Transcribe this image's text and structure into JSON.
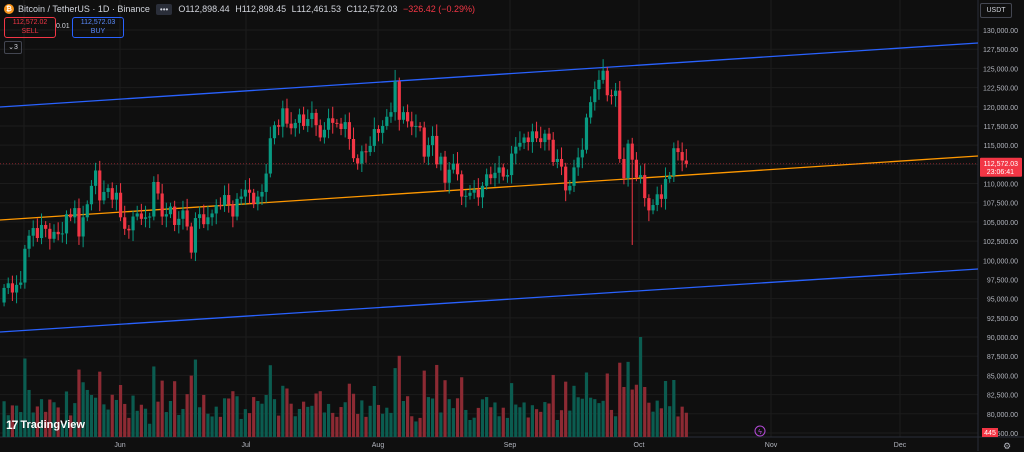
{
  "header": {
    "symbol_title": "Bitcoin / TetherUS · 1D · Binance",
    "more_label": "•••",
    "ohlc_open": "O112,898.44",
    "ohlc_high": "H112,898.45",
    "ohlc_low": "L112,461.53",
    "ohlc_close": "C112,572.03",
    "ohlc_change": "−326.42 (−0.29%)",
    "coin_icon": "bitcoin-icon"
  },
  "trade": {
    "sell_price": "112,572.02",
    "sell_label": "SELL",
    "spread": "0.01",
    "buy_price": "112,572.03",
    "buy_label": "BUY"
  },
  "indicators_toggle": "3",
  "currency_button": "USDT",
  "brand": "TradingView",
  "colors": {
    "up": "#089981",
    "down": "#f23645",
    "channel": "#2962ff",
    "midline": "#ff9800"
  },
  "chart_data": {
    "type": "candlestick",
    "y_axis_ticks": [
      "130,000.00",
      "127,500.00",
      "125,000.00",
      "122,500.00",
      "120,000.00",
      "117,500.00",
      "115,000.00",
      "112,500.00",
      "110,000.00",
      "107,500.00",
      "105,000.00",
      "102,500.00",
      "100,000.00",
      "97,500.00",
      "95,000.00",
      "92,500.00",
      "90,000.00",
      "87,500.00",
      "85,000.00",
      "82,500.00",
      "80,000.00",
      "77,500.00"
    ],
    "x_axis_ticks": [
      "Jun",
      "Jul",
      "Aug",
      "Sep",
      "Oct",
      "Nov",
      "Dec"
    ],
    "last_price_label": "112,572.03",
    "countdown_label": "23:06:41",
    "volume_label": "445",
    "price_range": [
      75000,
      131500
    ],
    "x_start": "2025-05-01",
    "x_end": "2025-12-31",
    "candle_closes": [
      [
        94500,
        96400
      ],
      [
        96400,
        97000
      ],
      [
        97000,
        95800
      ],
      [
        95800,
        96800
      ],
      [
        96800,
        97100
      ],
      [
        97100,
        101500
      ],
      [
        101500,
        103200
      ],
      [
        103200,
        104200
      ],
      [
        104200,
        102900
      ],
      [
        102900,
        104600
      ],
      [
        104600,
        104100
      ],
      [
        104100,
        102800
      ],
      [
        102800,
        103700
      ],
      [
        103700,
        103400
      ],
      [
        103400,
        103500
      ],
      [
        103500,
        106000
      ],
      [
        106000,
        105600
      ],
      [
        105600,
        106800
      ],
      [
        106800,
        103100
      ],
      [
        103100,
        105600
      ],
      [
        105600,
        107300
      ],
      [
        107300,
        109700
      ],
      [
        109700,
        111700
      ],
      [
        111700,
        107800
      ],
      [
        107800,
        108900
      ],
      [
        108900,
        109400
      ],
      [
        109400,
        107900
      ],
      [
        107900,
        108800
      ],
      [
        108800,
        105600
      ],
      [
        105600,
        104100
      ],
      [
        104100,
        103900
      ],
      [
        103900,
        105700
      ],
      [
        105700,
        106100
      ],
      [
        106100,
        105400
      ],
      [
        105400,
        105600
      ],
      [
        105600,
        105700
      ],
      [
        105700,
        110200
      ],
      [
        110200,
        108700
      ],
      [
        108700,
        105700
      ],
      [
        105700,
        106000
      ],
      [
        106000,
        107000
      ],
      [
        107000,
        104600
      ],
      [
        104600,
        105400
      ],
      [
        105400,
        106500
      ],
      [
        106500,
        104400
      ],
      [
        104400,
        101000
      ],
      [
        101000,
        105500
      ],
      [
        105500,
        106000
      ],
      [
        106000,
        104700
      ],
      [
        104700,
        105600
      ],
      [
        105600,
        106100
      ],
      [
        106100,
        107200
      ],
      [
        107200,
        107100
      ],
      [
        107100,
        108500
      ],
      [
        108500,
        107300
      ],
      [
        107300,
        105700
      ],
      [
        105700,
        108000
      ],
      [
        108000,
        108300
      ],
      [
        108300,
        109200
      ],
      [
        109200,
        108800
      ],
      [
        108800,
        107300
      ],
      [
        107300,
        108300
      ],
      [
        108300,
        108900
      ],
      [
        108900,
        111300
      ],
      [
        111300,
        115900
      ],
      [
        115900,
        117600
      ],
      [
        117600,
        117400
      ],
      [
        117400,
        119800
      ],
      [
        119800,
        117800
      ],
      [
        117800,
        117200
      ],
      [
        117200,
        117900
      ],
      [
        117900,
        119000
      ],
      [
        119000,
        117500
      ],
      [
        117500,
        118400
      ],
      [
        118400,
        119200
      ],
      [
        119200,
        117600
      ],
      [
        117600,
        116000
      ],
      [
        116000,
        117000
      ],
      [
        117000,
        118500
      ],
      [
        118500,
        117900
      ],
      [
        117900,
        117800
      ],
      [
        117800,
        117100
      ],
      [
        117100,
        118000
      ],
      [
        118000,
        115800
      ],
      [
        115800,
        113300
      ],
      [
        113300,
        112600
      ],
      [
        112600,
        114200
      ],
      [
        114200,
        114100
      ],
      [
        114100,
        114900
      ],
      [
        114900,
        117100
      ],
      [
        117100,
        116600
      ],
      [
        116600,
        117500
      ],
      [
        117500,
        118700
      ],
      [
        118700,
        119300
      ],
      [
        119300,
        123300
      ],
      [
        123300,
        118300
      ],
      [
        118300,
        119300
      ],
      [
        119300,
        118100
      ],
      [
        118100,
        117400
      ],
      [
        117400,
        117500
      ],
      [
        117500,
        117300
      ],
      [
        117300,
        113500
      ],
      [
        113500,
        115000
      ],
      [
        115000,
        116200
      ],
      [
        116200,
        112500
      ],
      [
        112500,
        113500
      ],
      [
        113500,
        110100
      ],
      [
        110100,
        111800
      ],
      [
        111800,
        112600
      ],
      [
        112600,
        111200
      ],
      [
        111200,
        108300
      ],
      [
        108300,
        108400
      ],
      [
        108400,
        108800
      ],
      [
        108800,
        109200
      ],
      [
        109200,
        108200
      ],
      [
        108200,
        109700
      ],
      [
        109700,
        111200
      ],
      [
        111200,
        110700
      ],
      [
        110700,
        111400
      ],
      [
        111400,
        112100
      ],
      [
        112100,
        110900
      ],
      [
        110900,
        111100
      ],
      [
        111100,
        113900
      ],
      [
        113900,
        114800
      ],
      [
        114800,
        115300
      ],
      [
        115300,
        116000
      ],
      [
        116000,
        115400
      ],
      [
        115400,
        116800
      ],
      [
        116800,
        115900
      ],
      [
        115900,
        115400
      ],
      [
        115400,
        116500
      ],
      [
        116500,
        115700
      ],
      [
        115700,
        112800
      ],
      [
        112800,
        113200
      ],
      [
        113200,
        112200
      ],
      [
        112200,
        109100
      ],
      [
        109100,
        109700
      ],
      [
        109700,
        112100
      ],
      [
        112100,
        113400
      ],
      [
        113400,
        114400
      ],
      [
        114400,
        118600
      ],
      [
        118600,
        120600
      ],
      [
        120600,
        122300
      ],
      [
        122300,
        123500
      ],
      [
        123500,
        124700
      ],
      [
        124700,
        121500
      ],
      [
        121500,
        121400
      ],
      [
        121400,
        122100
      ],
      [
        122100,
        113200
      ],
      [
        113200,
        110700
      ],
      [
        110700,
        115200
      ],
      [
        115200,
        113100
      ],
      [
        113100,
        110800
      ],
      [
        110800,
        111100
      ],
      [
        111100,
        108100
      ],
      [
        108100,
        106500
      ],
      [
        106500,
        107200
      ],
      [
        107200,
        108600
      ],
      [
        108600,
        108000
      ],
      [
        108000,
        110600
      ],
      [
        110600,
        111000
      ],
      [
        111000,
        114600
      ],
      [
        114600,
        114100
      ],
      [
        114100,
        113000
      ],
      [
        113000,
        112572
      ]
    ]
  }
}
